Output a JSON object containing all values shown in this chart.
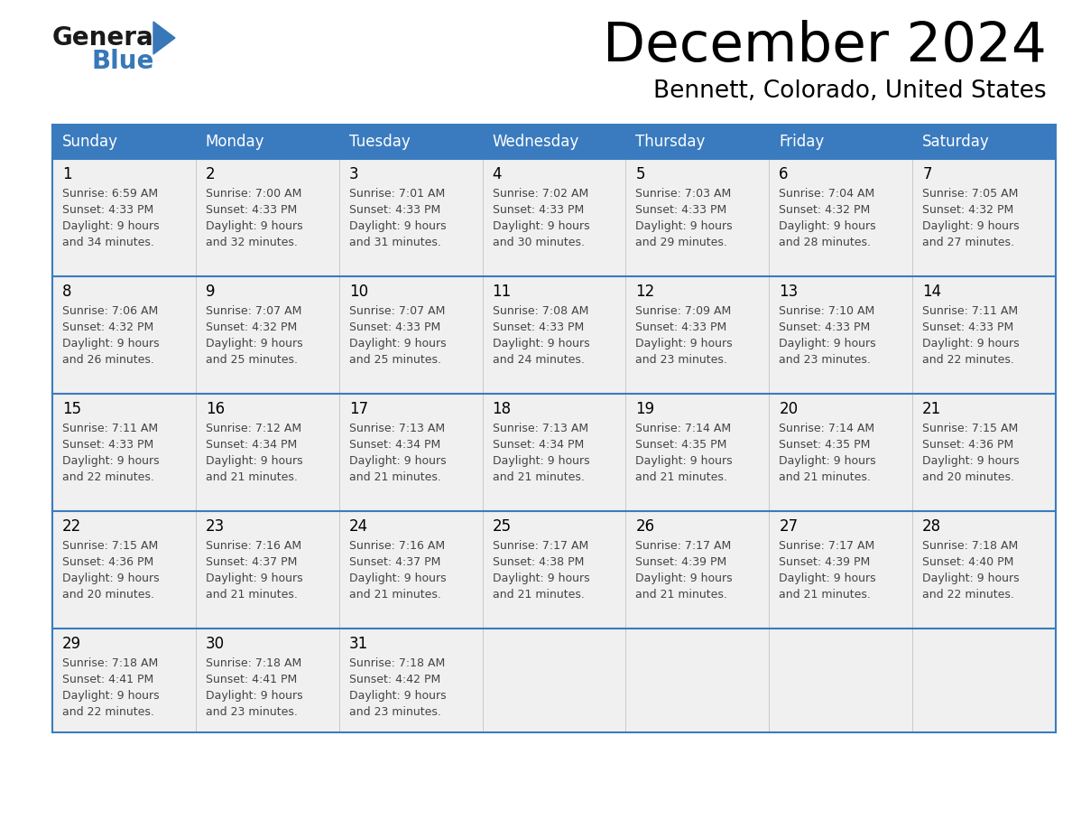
{
  "title": "December 2024",
  "subtitle": "Bennett, Colorado, United States",
  "header_color": "#3a7bbf",
  "header_text_color": "#ffffff",
  "cell_bg_color": "#f0f0f0",
  "border_color": "#3a7bbf",
  "day_headers": [
    "Sunday",
    "Monday",
    "Tuesday",
    "Wednesday",
    "Thursday",
    "Friday",
    "Saturday"
  ],
  "weeks": [
    [
      {
        "day": 1,
        "sunrise": "6:59 AM",
        "sunset": "4:33 PM",
        "daylight_hours": "9",
        "daylight_mins": "34"
      },
      {
        "day": 2,
        "sunrise": "7:00 AM",
        "sunset": "4:33 PM",
        "daylight_hours": "9",
        "daylight_mins": "32"
      },
      {
        "day": 3,
        "sunrise": "7:01 AM",
        "sunset": "4:33 PM",
        "daylight_hours": "9",
        "daylight_mins": "31"
      },
      {
        "day": 4,
        "sunrise": "7:02 AM",
        "sunset": "4:33 PM",
        "daylight_hours": "9",
        "daylight_mins": "30"
      },
      {
        "day": 5,
        "sunrise": "7:03 AM",
        "sunset": "4:33 PM",
        "daylight_hours": "9",
        "daylight_mins": "29"
      },
      {
        "day": 6,
        "sunrise": "7:04 AM",
        "sunset": "4:32 PM",
        "daylight_hours": "9",
        "daylight_mins": "28"
      },
      {
        "day": 7,
        "sunrise": "7:05 AM",
        "sunset": "4:32 PM",
        "daylight_hours": "9",
        "daylight_mins": "27"
      }
    ],
    [
      {
        "day": 8,
        "sunrise": "7:06 AM",
        "sunset": "4:32 PM",
        "daylight_hours": "9",
        "daylight_mins": "26"
      },
      {
        "day": 9,
        "sunrise": "7:07 AM",
        "sunset": "4:32 PM",
        "daylight_hours": "9",
        "daylight_mins": "25"
      },
      {
        "day": 10,
        "sunrise": "7:07 AM",
        "sunset": "4:33 PM",
        "daylight_hours": "9",
        "daylight_mins": "25"
      },
      {
        "day": 11,
        "sunrise": "7:08 AM",
        "sunset": "4:33 PM",
        "daylight_hours": "9",
        "daylight_mins": "24"
      },
      {
        "day": 12,
        "sunrise": "7:09 AM",
        "sunset": "4:33 PM",
        "daylight_hours": "9",
        "daylight_mins": "23"
      },
      {
        "day": 13,
        "sunrise": "7:10 AM",
        "sunset": "4:33 PM",
        "daylight_hours": "9",
        "daylight_mins": "23"
      },
      {
        "day": 14,
        "sunrise": "7:11 AM",
        "sunset": "4:33 PM",
        "daylight_hours": "9",
        "daylight_mins": "22"
      }
    ],
    [
      {
        "day": 15,
        "sunrise": "7:11 AM",
        "sunset": "4:33 PM",
        "daylight_hours": "9",
        "daylight_mins": "22"
      },
      {
        "day": 16,
        "sunrise": "7:12 AM",
        "sunset": "4:34 PM",
        "daylight_hours": "9",
        "daylight_mins": "21"
      },
      {
        "day": 17,
        "sunrise": "7:13 AM",
        "sunset": "4:34 PM",
        "daylight_hours": "9",
        "daylight_mins": "21"
      },
      {
        "day": 18,
        "sunrise": "7:13 AM",
        "sunset": "4:34 PM",
        "daylight_hours": "9",
        "daylight_mins": "21"
      },
      {
        "day": 19,
        "sunrise": "7:14 AM",
        "sunset": "4:35 PM",
        "daylight_hours": "9",
        "daylight_mins": "21"
      },
      {
        "day": 20,
        "sunrise": "7:14 AM",
        "sunset": "4:35 PM",
        "daylight_hours": "9",
        "daylight_mins": "21"
      },
      {
        "day": 21,
        "sunrise": "7:15 AM",
        "sunset": "4:36 PM",
        "daylight_hours": "9",
        "daylight_mins": "20"
      }
    ],
    [
      {
        "day": 22,
        "sunrise": "7:15 AM",
        "sunset": "4:36 PM",
        "daylight_hours": "9",
        "daylight_mins": "20"
      },
      {
        "day": 23,
        "sunrise": "7:16 AM",
        "sunset": "4:37 PM",
        "daylight_hours": "9",
        "daylight_mins": "21"
      },
      {
        "day": 24,
        "sunrise": "7:16 AM",
        "sunset": "4:37 PM",
        "daylight_hours": "9",
        "daylight_mins": "21"
      },
      {
        "day": 25,
        "sunrise": "7:17 AM",
        "sunset": "4:38 PM",
        "daylight_hours": "9",
        "daylight_mins": "21"
      },
      {
        "day": 26,
        "sunrise": "7:17 AM",
        "sunset": "4:39 PM",
        "daylight_hours": "9",
        "daylight_mins": "21"
      },
      {
        "day": 27,
        "sunrise": "7:17 AM",
        "sunset": "4:39 PM",
        "daylight_hours": "9",
        "daylight_mins": "21"
      },
      {
        "day": 28,
        "sunrise": "7:18 AM",
        "sunset": "4:40 PM",
        "daylight_hours": "9",
        "daylight_mins": "22"
      }
    ],
    [
      {
        "day": 29,
        "sunrise": "7:18 AM",
        "sunset": "4:41 PM",
        "daylight_hours": "9",
        "daylight_mins": "22"
      },
      {
        "day": 30,
        "sunrise": "7:18 AM",
        "sunset": "4:41 PM",
        "daylight_hours": "9",
        "daylight_mins": "23"
      },
      {
        "day": 31,
        "sunrise": "7:18 AM",
        "sunset": "4:42 PM",
        "daylight_hours": "9",
        "daylight_mins": "23"
      },
      null,
      null,
      null,
      null
    ]
  ],
  "logo_color_general": "#1a1a1a",
  "logo_color_blue": "#3878b8",
  "logo_triangle_color": "#3878b8"
}
